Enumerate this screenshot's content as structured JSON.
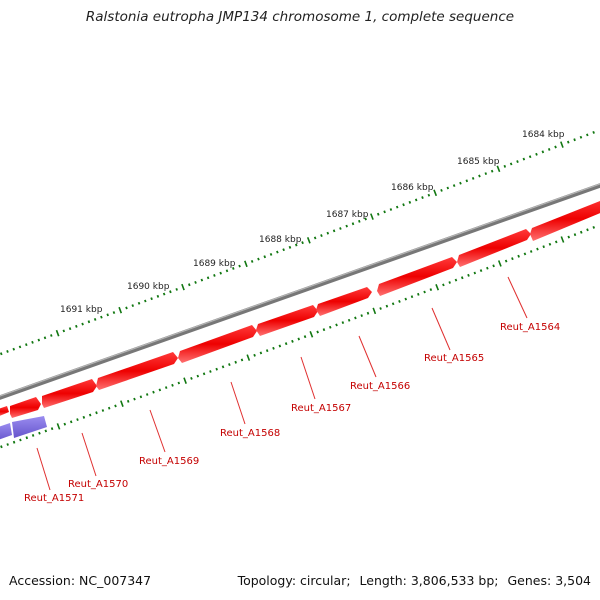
{
  "title": "Ralstonia eutropha JMP134 chromosome 1, complete sequence",
  "footer": {
    "accession_label": "Accession:",
    "accession_value": "NC_007347",
    "topology_label": "Topology:",
    "topology_value": "circular;",
    "length_label": "Length:",
    "length_value": "3,806,533 bp;",
    "genes_label": "Genes:",
    "genes_value": "3,504"
  },
  "colors": {
    "backbone": "#8a8a8a",
    "gene_forward": "#ee0000",
    "gene_reverse": "#7766dd",
    "ticks": "#117711",
    "label_text": "#c40000"
  },
  "scale_labels": [
    "1691 kbp",
    "1690 kbp",
    "1689 kbp",
    "1688 kbp",
    "1687 kbp",
    "1686 kbp",
    "1685 kbp",
    "1684 kbp"
  ],
  "gene_labels": [
    "Reut_A1571",
    "Reut_A1570",
    "Reut_A1569",
    "Reut_A1568",
    "Reut_A1567",
    "Reut_A1566",
    "Reut_A1565",
    "Reut_A1564"
  ]
}
